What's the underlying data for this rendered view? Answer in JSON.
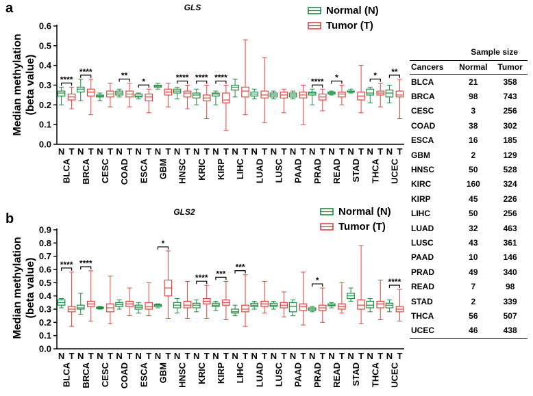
{
  "colors": {
    "normal": "#1a8a3c",
    "tumor": "#e8413a",
    "axis": "#000000"
  },
  "chart_data": [
    {
      "panel_label": "a",
      "type": "boxplot",
      "title": "GLS",
      "ylabel": "Median methylation\n(beta value)",
      "ylim": [
        0,
        0.6
      ],
      "yticks": [
        "0.0",
        "0.1",
        "0.2",
        "0.3",
        "0.4",
        "0.5",
        "0.6"
      ],
      "legend": {
        "normal": "Normal (N)",
        "tumor": "Tumor (T)",
        "position": "top-right"
      },
      "group_labels": [
        "N",
        "T"
      ],
      "categories": [
        "BLCA",
        "BRCA",
        "CESC",
        "COAD",
        "ESCA",
        "GBM",
        "HNSC",
        "KRIC",
        "KIRP",
        "LIHC",
        "LUAD",
        "LUSC",
        "PAAD",
        "PRAD",
        "READ",
        "STAD",
        "THCA",
        "UCEC"
      ],
      "normal": [
        [
          0.2,
          0.245,
          0.26,
          0.27,
          0.29
        ],
        [
          0.22,
          0.265,
          0.28,
          0.29,
          0.33
        ],
        [
          0.22,
          0.24,
          0.245,
          0.25,
          0.26
        ],
        [
          0.24,
          0.25,
          0.26,
          0.27,
          0.28
        ],
        [
          0.23,
          0.24,
          0.245,
          0.255,
          0.26
        ],
        [
          0.28,
          0.29,
          0.295,
          0.3,
          0.31
        ],
        [
          0.23,
          0.26,
          0.27,
          0.28,
          0.29
        ],
        [
          0.2,
          0.235,
          0.25,
          0.26,
          0.28
        ],
        [
          0.2,
          0.245,
          0.255,
          0.26,
          0.27
        ],
        [
          0.24,
          0.275,
          0.29,
          0.3,
          0.33
        ],
        [
          0.23,
          0.245,
          0.255,
          0.265,
          0.28
        ],
        [
          0.23,
          0.24,
          0.25,
          0.26,
          0.27
        ],
        [
          0.23,
          0.24,
          0.25,
          0.26,
          0.27
        ],
        [
          0.2,
          0.25,
          0.26,
          0.265,
          0.28
        ],
        [
          0.25,
          0.255,
          0.26,
          0.265,
          0.27
        ],
        [
          0.26,
          0.265,
          0.27,
          0.27,
          0.28
        ],
        [
          0.21,
          0.25,
          0.26,
          0.28,
          0.29
        ],
        [
          0.21,
          0.24,
          0.26,
          0.275,
          0.3
        ]
      ],
      "tumor": [
        [
          0.18,
          0.225,
          0.24,
          0.255,
          0.29
        ],
        [
          0.15,
          0.245,
          0.265,
          0.28,
          0.33
        ],
        [
          0.19,
          0.24,
          0.255,
          0.27,
          0.31
        ],
        [
          0.19,
          0.24,
          0.255,
          0.27,
          0.31
        ],
        [
          0.16,
          0.22,
          0.24,
          0.255,
          0.28
        ],
        [
          0.19,
          0.25,
          0.265,
          0.28,
          0.31
        ],
        [
          0.18,
          0.24,
          0.26,
          0.27,
          0.3
        ],
        [
          0.13,
          0.22,
          0.235,
          0.25,
          0.3
        ],
        [
          0.07,
          0.21,
          0.225,
          0.26,
          0.3
        ],
        [
          0.15,
          0.24,
          0.27,
          0.29,
          0.53
        ],
        [
          0.11,
          0.235,
          0.25,
          0.27,
          0.44
        ],
        [
          0.16,
          0.235,
          0.25,
          0.265,
          0.28
        ],
        [
          0.1,
          0.235,
          0.25,
          0.265,
          0.3
        ],
        [
          0.17,
          0.225,
          0.24,
          0.255,
          0.28
        ],
        [
          0.2,
          0.24,
          0.255,
          0.265,
          0.3
        ],
        [
          0.16,
          0.225,
          0.245,
          0.265,
          0.4
        ],
        [
          0.19,
          0.25,
          0.26,
          0.27,
          0.31
        ],
        [
          0.13,
          0.24,
          0.25,
          0.27,
          0.33
        ]
      ],
      "significance": [
        {
          "category": "BLCA",
          "stars": "****"
        },
        {
          "category": "BRCA",
          "stars": "****"
        },
        {
          "category": "COAD",
          "stars": "**"
        },
        {
          "category": "ESCA",
          "stars": "*"
        },
        {
          "category": "HNSC",
          "stars": "****"
        },
        {
          "category": "KRIC",
          "stars": "****"
        },
        {
          "category": "KIRP",
          "stars": "****"
        },
        {
          "category": "PRAD",
          "stars": "****"
        },
        {
          "category": "READ",
          "stars": "*"
        },
        {
          "category": "THCA",
          "stars": "*"
        },
        {
          "category": "UCEC",
          "stars": "**"
        }
      ]
    },
    {
      "panel_label": "b",
      "type": "boxplot",
      "title": "GLS2",
      "ylabel": "Median methylation\n(beta value)",
      "ylim": [
        0,
        0.9
      ],
      "yticks": [
        "0.0",
        "0.1",
        "0.2",
        "0.3",
        "0.4",
        "0.5",
        "0.6",
        "0.7",
        "0.8",
        "0.9"
      ],
      "legend": {
        "normal": "Normal (N)",
        "tumor": "Tumor (T)",
        "position": "top-right"
      },
      "group_labels": [
        "N",
        "T"
      ],
      "categories": [
        "BLCA",
        "BRCA",
        "CESC",
        "COAD",
        "ESCA",
        "GBM",
        "HNSC",
        "KRIC",
        "KIRP",
        "LIHC",
        "LUAD",
        "LUSC",
        "PAAD",
        "PRAD",
        "READ",
        "STAD",
        "THCA",
        "UCEC"
      ],
      "normal": [
        [
          0.31,
          0.33,
          0.35,
          0.37,
          0.38
        ],
        [
          0.26,
          0.3,
          0.31,
          0.33,
          0.42
        ],
        [
          0.3,
          0.305,
          0.31,
          0.315,
          0.32
        ],
        [
          0.3,
          0.32,
          0.335,
          0.35,
          0.37
        ],
        [
          0.27,
          0.3,
          0.315,
          0.33,
          0.35
        ],
        [
          0.31,
          0.32,
          0.33,
          0.335,
          0.34
        ],
        [
          0.27,
          0.31,
          0.33,
          0.35,
          0.38
        ],
        [
          0.28,
          0.31,
          0.33,
          0.345,
          0.37
        ],
        [
          0.29,
          0.32,
          0.33,
          0.345,
          0.36
        ],
        [
          0.25,
          0.27,
          0.28,
          0.3,
          0.33
        ],
        [
          0.3,
          0.32,
          0.33,
          0.345,
          0.36
        ],
        [
          0.3,
          0.32,
          0.33,
          0.345,
          0.36
        ],
        [
          0.25,
          0.28,
          0.32,
          0.35,
          0.37
        ],
        [
          0.28,
          0.29,
          0.3,
          0.31,
          0.32
        ],
        [
          0.31,
          0.325,
          0.33,
          0.34,
          0.35
        ],
        [
          0.36,
          0.38,
          0.4,
          0.42,
          0.46
        ],
        [
          0.28,
          0.31,
          0.33,
          0.36,
          0.38
        ],
        [
          0.28,
          0.31,
          0.33,
          0.345,
          0.37
        ]
      ],
      "tumor": [
        [
          0.17,
          0.28,
          0.3,
          0.32,
          0.58
        ],
        [
          0.21,
          0.32,
          0.34,
          0.36,
          0.59
        ],
        [
          0.19,
          0.28,
          0.31,
          0.34,
          0.55
        ],
        [
          0.25,
          0.32,
          0.34,
          0.36,
          0.46
        ],
        [
          0.25,
          0.3,
          0.32,
          0.35,
          0.5
        ],
        [
          0.23,
          0.4,
          0.46,
          0.52,
          0.74
        ],
        [
          0.23,
          0.31,
          0.33,
          0.36,
          0.51
        ],
        [
          0.23,
          0.34,
          0.36,
          0.38,
          0.48
        ],
        [
          0.22,
          0.33,
          0.35,
          0.37,
          0.51
        ],
        [
          0.17,
          0.28,
          0.3,
          0.33,
          0.56
        ],
        [
          0.27,
          0.32,
          0.34,
          0.36,
          0.51
        ],
        [
          0.24,
          0.31,
          0.33,
          0.35,
          0.43
        ],
        [
          0.18,
          0.29,
          0.32,
          0.34,
          0.58
        ],
        [
          0.2,
          0.29,
          0.31,
          0.33,
          0.46
        ],
        [
          0.27,
          0.3,
          0.32,
          0.34,
          0.5
        ],
        [
          0.19,
          0.3,
          0.33,
          0.37,
          0.78
        ],
        [
          0.22,
          0.31,
          0.34,
          0.36,
          0.52
        ],
        [
          0.21,
          0.28,
          0.3,
          0.32,
          0.45
        ]
      ],
      "significance": [
        {
          "category": "BLCA",
          "stars": "****"
        },
        {
          "category": "BRCA",
          "stars": "****"
        },
        {
          "category": "GBM",
          "stars": "*"
        },
        {
          "category": "KRIC",
          "stars": "****"
        },
        {
          "category": "KIRP",
          "stars": "***"
        },
        {
          "category": "LIHC",
          "stars": "***"
        },
        {
          "category": "PRAD",
          "stars": "*"
        },
        {
          "category": "UCEC",
          "stars": "****"
        }
      ]
    }
  ],
  "sample_size_table": {
    "title": "Sample size",
    "headers": [
      "Cancers",
      "Normal",
      "Tumor"
    ],
    "rows": [
      [
        "BLCA",
        "21",
        "358"
      ],
      [
        "BRCA",
        "98",
        "743"
      ],
      [
        "CESC",
        "3",
        "256"
      ],
      [
        "COAD",
        "38",
        "302"
      ],
      [
        "ESCA",
        "16",
        "185"
      ],
      [
        "GBM",
        "2",
        "129"
      ],
      [
        "HNSC",
        "50",
        "528"
      ],
      [
        "KIRC",
        "160",
        "324"
      ],
      [
        "KIRP",
        "45",
        "226"
      ],
      [
        "LIHC",
        "50",
        "256"
      ],
      [
        "LUAD",
        "32",
        "463"
      ],
      [
        "LUSC",
        "43",
        "361"
      ],
      [
        "PAAD",
        "10",
        "146"
      ],
      [
        "PRAD",
        "49",
        "340"
      ],
      [
        "READ",
        "7",
        "98"
      ],
      [
        "STAD",
        "2",
        "339"
      ],
      [
        "THCA",
        "56",
        "507"
      ],
      [
        "UCEC",
        "46",
        "438"
      ]
    ]
  }
}
